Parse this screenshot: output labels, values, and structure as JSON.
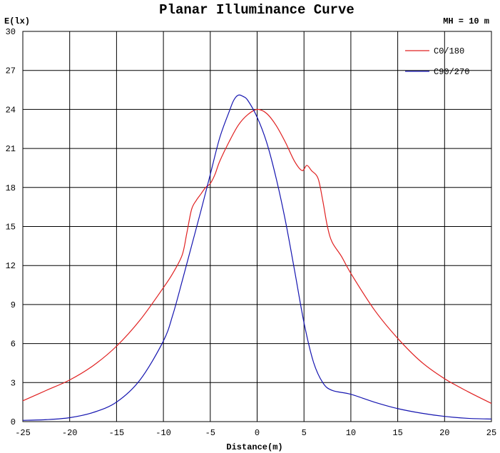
{
  "chart_data": {
    "type": "line",
    "title": "Planar Illuminance Curve",
    "ylabel": "E(lx)",
    "xlabel": "Distance(m)",
    "annotation": "MH = 10 m",
    "xlim": [
      -25,
      25
    ],
    "ylim": [
      0,
      30
    ],
    "xticks": [
      -25,
      -20,
      -15,
      -10,
      -5,
      0,
      5,
      10,
      15,
      20,
      25
    ],
    "yticks": [
      0,
      3,
      6,
      9,
      12,
      15,
      18,
      21,
      24,
      27,
      30
    ],
    "grid": true,
    "legend_position": "top-right",
    "series": [
      {
        "name": "C0/180",
        "color": "#e02020",
        "points": [
          [
            -25,
            1.6
          ],
          [
            -22.5,
            2.4
          ],
          [
            -20,
            3.2
          ],
          [
            -17.5,
            4.3
          ],
          [
            -15,
            5.8
          ],
          [
            -12.5,
            7.8
          ],
          [
            -10,
            10.3
          ],
          [
            -9,
            11.4
          ],
          [
            -8,
            12.8
          ],
          [
            -7.5,
            14.5
          ],
          [
            -7,
            16.3
          ],
          [
            -6.5,
            17.0
          ],
          [
            -6,
            17.5
          ],
          [
            -5.5,
            18.0
          ],
          [
            -5,
            18.3
          ],
          [
            -4.5,
            19.0
          ],
          [
            -4,
            20.0
          ],
          [
            -3,
            21.5
          ],
          [
            -2,
            22.8
          ],
          [
            -1,
            23.6
          ],
          [
            0,
            24.0
          ],
          [
            1,
            23.7
          ],
          [
            2,
            22.8
          ],
          [
            3,
            21.5
          ],
          [
            4,
            20.0
          ],
          [
            4.8,
            19.3
          ],
          [
            5.3,
            19.7
          ],
          [
            5.8,
            19.3
          ],
          [
            6.5,
            18.7
          ],
          [
            7,
            17.0
          ],
          [
            7.5,
            15.0
          ],
          [
            8,
            13.8
          ],
          [
            9,
            12.7
          ],
          [
            10,
            11.4
          ],
          [
            12.5,
            8.6
          ],
          [
            15,
            6.4
          ],
          [
            17.5,
            4.6
          ],
          [
            20,
            3.3
          ],
          [
            22.5,
            2.3
          ],
          [
            25,
            1.4
          ]
        ]
      },
      {
        "name": "C90/270",
        "color": "#1515b0",
        "points": [
          [
            -25,
            0.1
          ],
          [
            -22.5,
            0.15
          ],
          [
            -20,
            0.3
          ],
          [
            -17.5,
            0.7
          ],
          [
            -15,
            1.5
          ],
          [
            -12.5,
            3.2
          ],
          [
            -10,
            6.2
          ],
          [
            -9,
            8.2
          ],
          [
            -8,
            10.8
          ],
          [
            -7,
            13.5
          ],
          [
            -6,
            16.2
          ],
          [
            -5,
            19.0
          ],
          [
            -4,
            21.8
          ],
          [
            -3,
            23.8
          ],
          [
            -2.5,
            24.7
          ],
          [
            -2,
            25.1
          ],
          [
            -1.5,
            25.0
          ],
          [
            -1,
            24.7
          ],
          [
            0,
            23.4
          ],
          [
            1,
            21.5
          ],
          [
            2,
            18.8
          ],
          [
            3,
            15.5
          ],
          [
            4,
            11.6
          ],
          [
            5,
            7.6
          ],
          [
            6,
            4.6
          ],
          [
            7,
            3.0
          ],
          [
            8,
            2.4
          ],
          [
            10,
            2.1
          ],
          [
            12.5,
            1.5
          ],
          [
            15,
            1.0
          ],
          [
            17.5,
            0.65
          ],
          [
            20,
            0.4
          ],
          [
            22.5,
            0.25
          ],
          [
            25,
            0.2
          ]
        ]
      }
    ]
  }
}
